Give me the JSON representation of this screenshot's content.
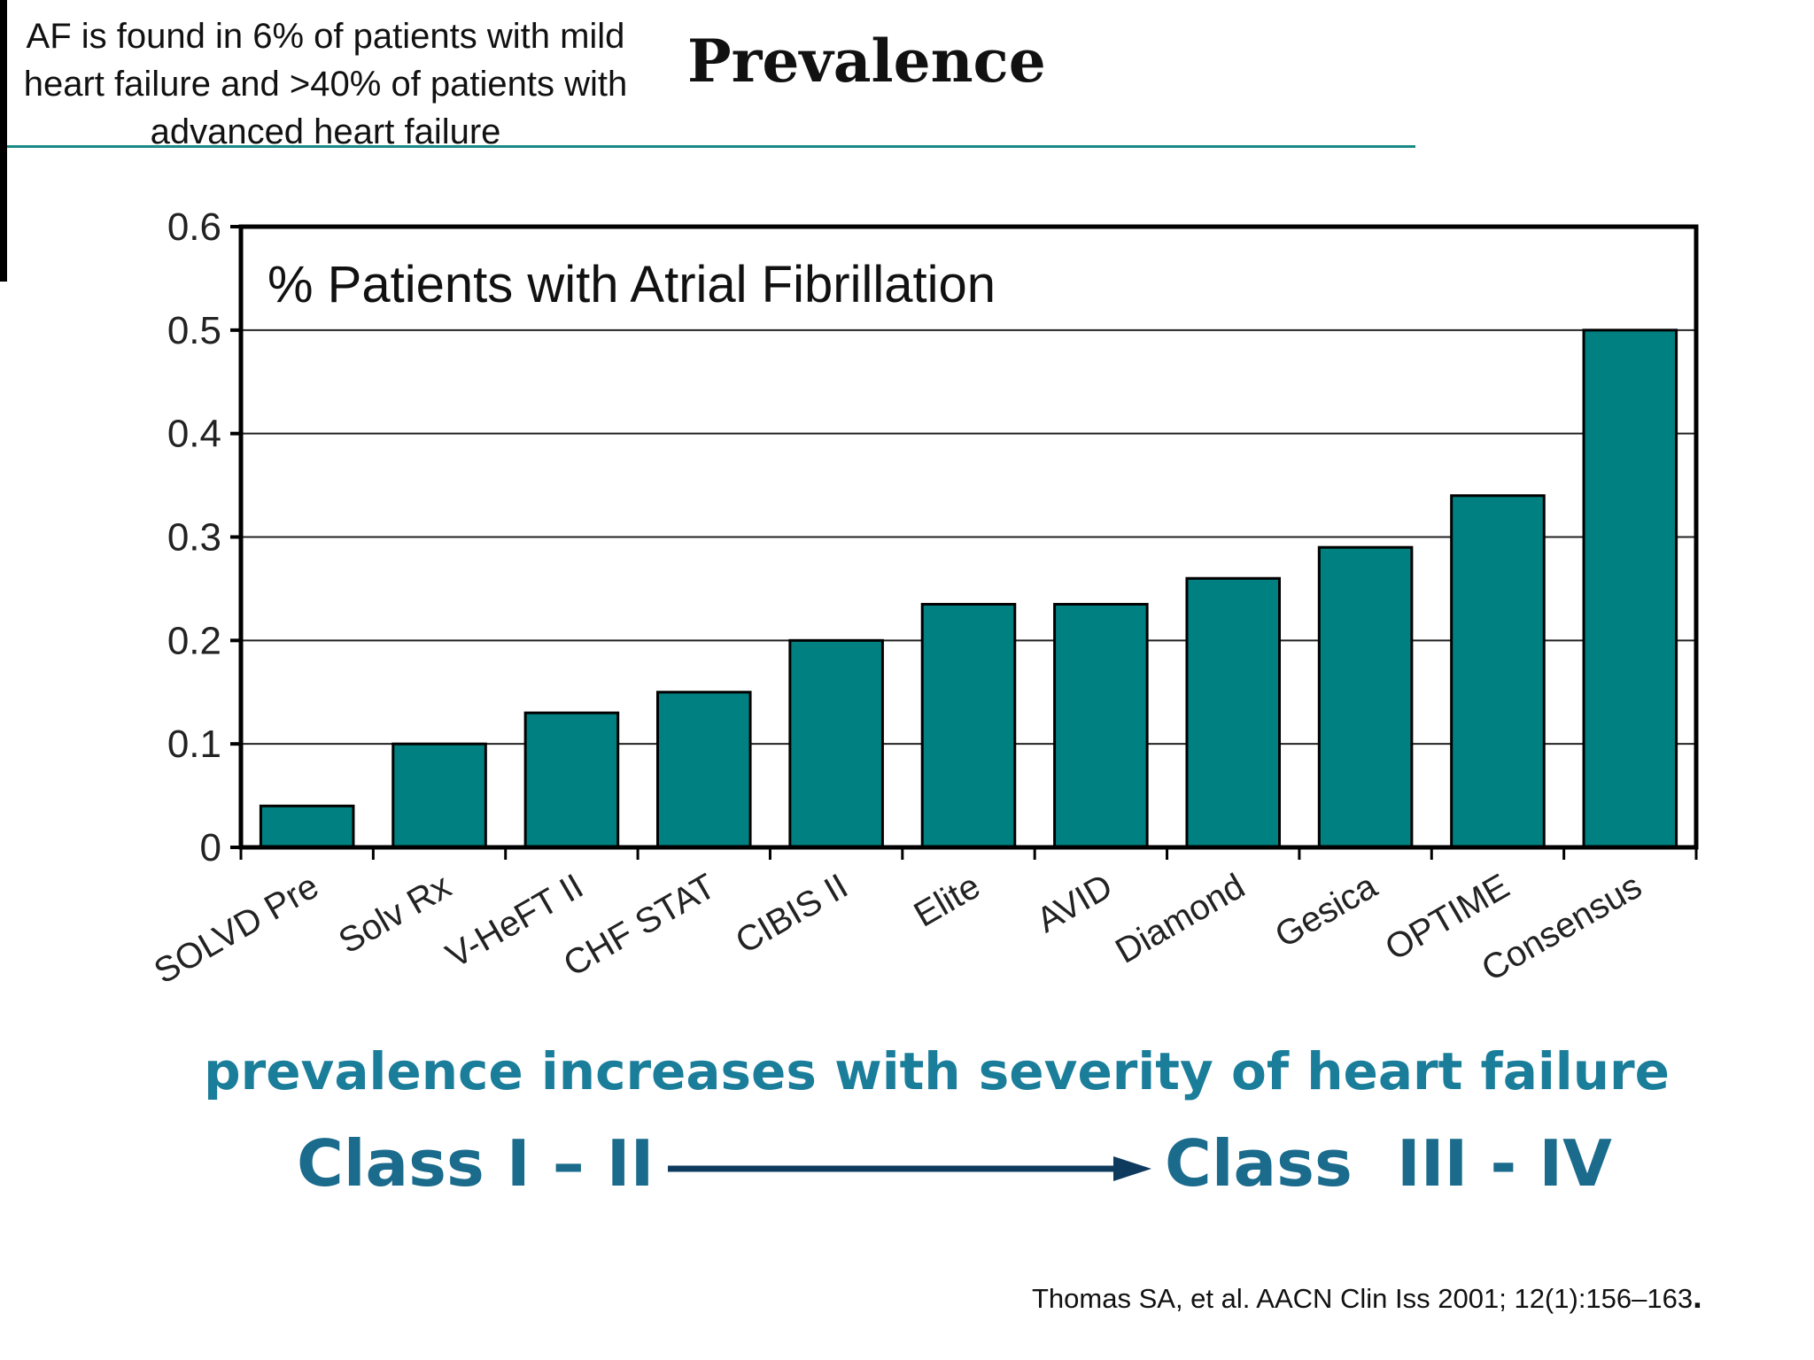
{
  "header": {
    "note": "AF is found in 6% of patients with mild heart failure and >40% of patients with advanced heart failure",
    "title": "Prevalence"
  },
  "colors": {
    "bar": "#008080",
    "accent_rule": "#1b8a86",
    "caption": "#1a7d99",
    "class_text": "#1a6b8c",
    "arrow": "#0e3a5e"
  },
  "chart_data": {
    "type": "bar",
    "title": "% Patients with Atrial Fibrillation",
    "categories": [
      "SOLVD Pre",
      "Solv Rx",
      "V-HeFT II",
      "CHF STAT",
      "CIBIS II",
      "Elite",
      "AVID",
      "Diamond",
      "Gesica",
      "OPTIME",
      "Consensus"
    ],
    "values": [
      0.04,
      0.1,
      0.13,
      0.15,
      0.2,
      0.235,
      0.235,
      0.26,
      0.29,
      0.34,
      0.5
    ],
    "ylim": [
      0,
      0.6
    ],
    "yticks": [
      "0",
      "0.1",
      "0.2",
      "0.3",
      "0.4",
      "0.5",
      "0.6"
    ],
    "grid": true,
    "legend": "none"
  },
  "caption": "prevalence increases with severity of heart failure",
  "severity": {
    "from": "Class I – II",
    "to": "Class  III - IV"
  },
  "citation": {
    "text": "Thomas SA, et al. AACN Clin Iss 2001; 12(1):156–163",
    "end": "."
  }
}
